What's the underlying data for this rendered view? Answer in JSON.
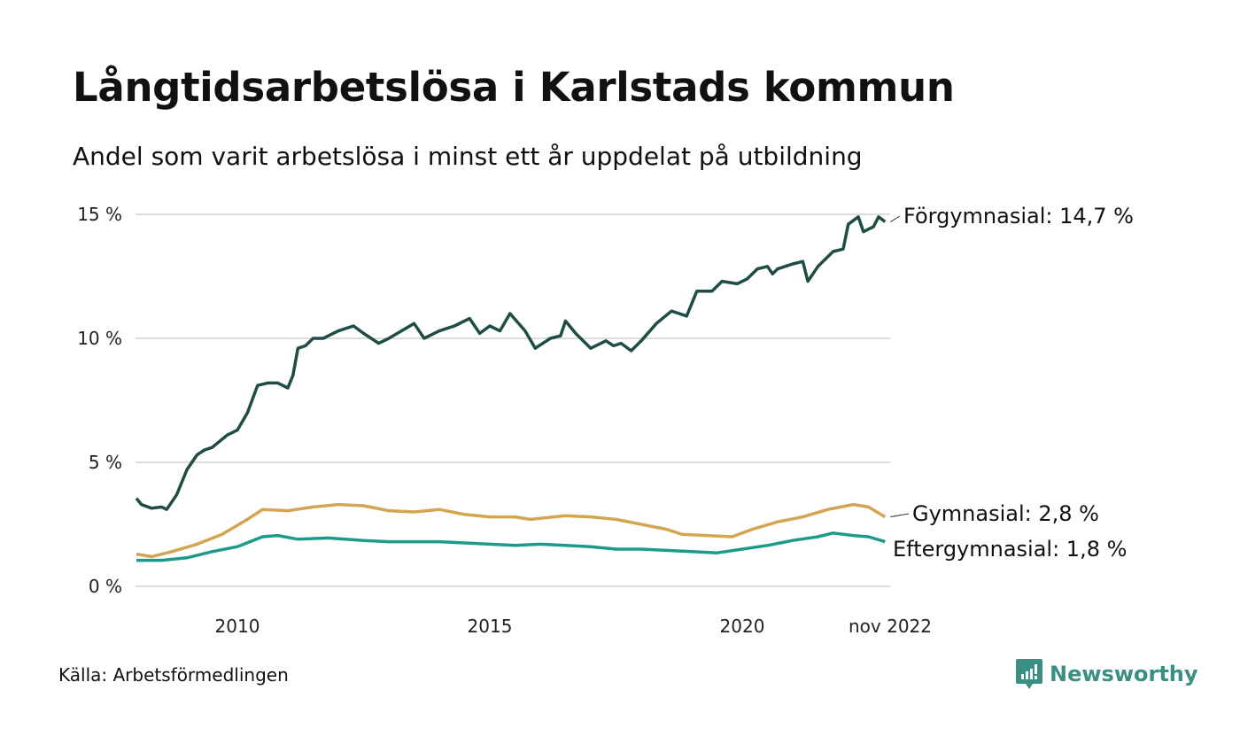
{
  "title": "Långtidsarbetslösa i Karlstads kommun",
  "subtitle": "Andel som varit arbetslösa i minst ett år uppdelat på utbildning",
  "source": "Källa: Arbetsförmedlingen",
  "logo": {
    "text": "Newsworthy",
    "icon": "bar-chart-logo-icon",
    "color": "#3a8f84"
  },
  "chart_data": {
    "type": "line",
    "title": "Långtidsarbetslösa i Karlstads kommun",
    "ylabel": "",
    "xlabel": "",
    "ylim": [
      0,
      15
    ],
    "xlim": [
      2008.0,
      2022.83
    ],
    "grid": true,
    "y_ticks": [
      {
        "v": 0,
        "label": "0 %"
      },
      {
        "v": 5,
        "label": "5 %"
      },
      {
        "v": 10,
        "label": "10 %"
      },
      {
        "v": 15,
        "label": "15 %"
      }
    ],
    "x_ticks": [
      {
        "v": 2010,
        "label": "2010"
      },
      {
        "v": 2015,
        "label": "2015"
      },
      {
        "v": 2020,
        "label": "2020"
      },
      {
        "v": 2022.83,
        "label": "nov 2022"
      }
    ],
    "series": [
      {
        "name": "Förgymnasial",
        "end_label": "Förgymnasial: 14,7 %",
        "color": "#1f4d45",
        "x": [
          2008.0,
          2008.1,
          2008.3,
          2008.5,
          2008.6,
          2008.8,
          2009.0,
          2009.2,
          2009.35,
          2009.5,
          2009.8,
          2010.0,
          2010.2,
          2010.4,
          2010.6,
          2010.8,
          2011.0,
          2011.1,
          2011.2,
          2011.35,
          2011.5,
          2011.7,
          2012.0,
          2012.3,
          2012.5,
          2012.8,
          2013.0,
          2013.5,
          2013.7,
          2014.0,
          2014.3,
          2014.6,
          2014.8,
          2015.0,
          2015.2,
          2015.4,
          2015.7,
          2015.9,
          2016.2,
          2016.4,
          2016.5,
          2016.7,
          2017.0,
          2017.3,
          2017.45,
          2017.6,
          2017.8,
          2018.0,
          2018.3,
          2018.6,
          2018.9,
          2019.1,
          2019.4,
          2019.6,
          2019.9,
          2020.1,
          2020.3,
          2020.5,
          2020.6,
          2020.7,
          2021.0,
          2021.2,
          2021.3,
          2021.5,
          2021.8,
          2022.0,
          2022.1,
          2022.3,
          2022.4,
          2022.6,
          2022.7,
          2022.83
        ],
        "values": [
          3.55,
          3.3,
          3.15,
          3.2,
          3.1,
          3.7,
          4.7,
          5.3,
          5.5,
          5.6,
          6.1,
          6.3,
          7.0,
          8.1,
          8.2,
          8.2,
          8.0,
          8.5,
          9.6,
          9.7,
          10.0,
          10.0,
          10.3,
          10.5,
          10.2,
          9.8,
          10.0,
          10.6,
          10.0,
          10.3,
          10.5,
          10.8,
          10.2,
          10.5,
          10.3,
          11.0,
          10.3,
          9.6,
          10.0,
          10.1,
          10.7,
          10.2,
          9.6,
          9.9,
          9.7,
          9.8,
          9.5,
          9.9,
          10.6,
          11.1,
          10.9,
          11.9,
          11.9,
          12.3,
          12.2,
          12.4,
          12.8,
          12.9,
          12.6,
          12.8,
          13.0,
          13.1,
          12.3,
          12.9,
          13.5,
          13.6,
          14.6,
          14.9,
          14.3,
          14.5,
          14.9,
          14.7
        ]
      },
      {
        "name": "Gymnasial",
        "end_label": "Gymnasial:  2,8 %",
        "color": "#d4a550",
        "x": [
          2008.0,
          2008.3,
          2008.7,
          2009.2,
          2009.7,
          2010.2,
          2010.5,
          2011.0,
          2011.5,
          2012.0,
          2012.5,
          2013.0,
          2013.5,
          2014.0,
          2014.5,
          2015.0,
          2015.5,
          2015.8,
          2016.5,
          2017.0,
          2017.5,
          2018.0,
          2018.5,
          2018.8,
          2019.3,
          2019.8,
          2020.2,
          2020.7,
          2021.2,
          2021.7,
          2022.2,
          2022.5,
          2022.83
        ],
        "values": [
          1.3,
          1.2,
          1.4,
          1.7,
          2.1,
          2.7,
          3.1,
          3.05,
          3.2,
          3.3,
          3.25,
          3.05,
          3.0,
          3.1,
          2.9,
          2.8,
          2.8,
          2.7,
          2.85,
          2.8,
          2.7,
          2.5,
          2.3,
          2.1,
          2.05,
          2.0,
          2.3,
          2.6,
          2.8,
          3.1,
          3.3,
          3.2,
          2.8
        ]
      },
      {
        "name": "Eftergymnasial",
        "end_label": "Eftergymnasial:  1,8 %",
        "color": "#1e9a8a",
        "x": [
          2008.0,
          2008.5,
          2009.0,
          2009.5,
          2010.0,
          2010.5,
          2010.8,
          2011.2,
          2011.8,
          2012.5,
          2013.0,
          2014.0,
          2014.5,
          2015.0,
          2015.5,
          2016.0,
          2016.5,
          2017.0,
          2017.5,
          2018.0,
          2018.5,
          2019.0,
          2019.5,
          2020.0,
          2020.5,
          2021.0,
          2021.5,
          2021.8,
          2022.2,
          2022.5,
          2022.83
        ],
        "values": [
          1.05,
          1.05,
          1.15,
          1.4,
          1.6,
          2.0,
          2.05,
          1.9,
          1.95,
          1.85,
          1.8,
          1.8,
          1.75,
          1.7,
          1.65,
          1.7,
          1.65,
          1.6,
          1.5,
          1.5,
          1.45,
          1.4,
          1.35,
          1.5,
          1.65,
          1.85,
          2.0,
          2.15,
          2.05,
          2.0,
          1.8
        ]
      }
    ]
  }
}
